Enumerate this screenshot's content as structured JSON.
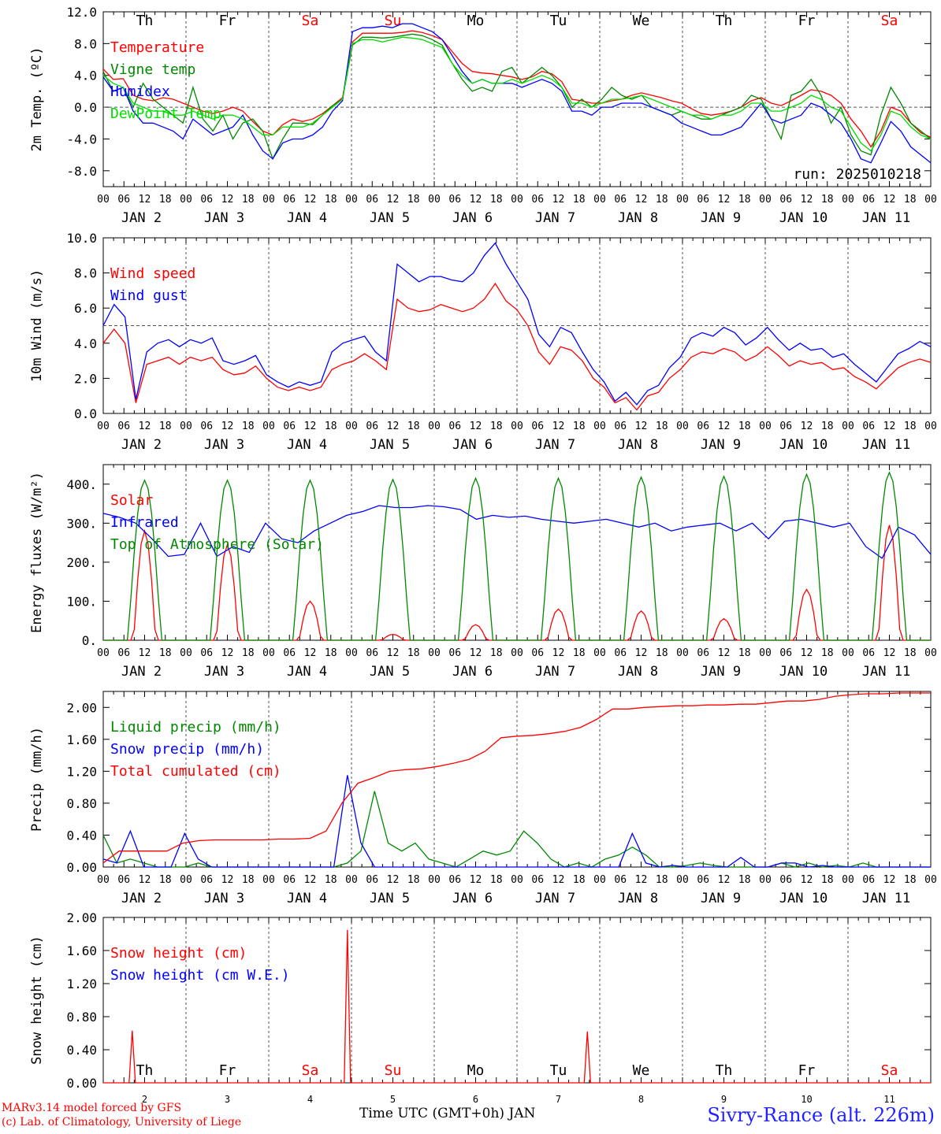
{
  "chart_data": [
    {
      "type": "line",
      "ylabel": "2m Temp. (ºC)",
      "ylim": [
        -10,
        12
      ],
      "yticks": [
        "12.0",
        "8.0",
        "4.0",
        "0.0",
        "-4.0",
        "-8.0"
      ],
      "annotation": "run: 2025010218",
      "reference_line": 0,
      "series": [
        {
          "name": "Temperature",
          "color": "#ff0000",
          "values": [
            4.8,
            3.5,
            3.6,
            1.5,
            1.0,
            0.8,
            1.2,
            1.0,
            0.5,
            0.0,
            -0.5,
            -0.8,
            -0.5,
            0.0,
            -0.5,
            -1.8,
            -3.0,
            -3.5,
            -2.2,
            -1.5,
            -1.8,
            -1.5,
            -0.8,
            0.2,
            1.2,
            8.2,
            9.3,
            9.3,
            9.3,
            9.3,
            9.4,
            9.6,
            9.4,
            9.0,
            8.5,
            7.0,
            5.5,
            4.5,
            4.3,
            4.2,
            4.0,
            3.8,
            3.5,
            3.8,
            4.5,
            4.2,
            3.2,
            1.0,
            0.8,
            0.5,
            0.5,
            0.8,
            1.0,
            1.5,
            1.8,
            1.5,
            1.2,
            0.8,
            0.5,
            -0.2,
            -0.8,
            -1.0,
            -0.8,
            -0.5,
            0.0,
            0.8,
            1.2,
            0.5,
            0.2,
            0.8,
            1.5,
            2.2,
            2.0,
            1.5,
            0.5,
            -1.5,
            -3.0,
            -5.0,
            -3.0,
            0.0,
            -0.5,
            -2.0,
            -3.2,
            -3.8
          ]
        },
        {
          "name": "Vigne temp",
          "color": "#008800",
          "values": [
            4.5,
            2.0,
            2.5,
            0.0,
            3.0,
            1.0,
            0.0,
            -1.0,
            -2.0,
            2.5,
            -1.5,
            -3.0,
            -1.0,
            -4.0,
            -2.0,
            -1.5,
            -3.0,
            -6.5,
            -4.0,
            -2.0,
            -2.0,
            -2.2,
            -1.0,
            0.2,
            1.0,
            7.8,
            8.8,
            8.8,
            8.7,
            8.8,
            9.0,
            9.2,
            9.0,
            8.5,
            7.8,
            5.5,
            3.5,
            2.0,
            2.5,
            2.0,
            4.5,
            5.0,
            3.0,
            4.0,
            5.0,
            4.0,
            2.5,
            0.0,
            1.0,
            0.0,
            1.0,
            2.5,
            1.5,
            1.0,
            1.5,
            0.0,
            -0.5,
            -1.0,
            -0.5,
            -1.0,
            -1.5,
            -1.5,
            -1.0,
            -0.5,
            0.0,
            1.5,
            1.0,
            -1.5,
            -4.0,
            1.5,
            2.0,
            3.5,
            1.5,
            -2.0,
            0.0,
            -3.5,
            -5.5,
            -6.0,
            -1.0,
            2.5,
            0.5,
            -2.0,
            -3.0,
            -4.0
          ]
        },
        {
          "name": "Humidex",
          "color": "#0000ff",
          "values": [
            3.8,
            2.0,
            2.5,
            -0.5,
            -2.0,
            -2.0,
            -2.5,
            -3.0,
            -4.0,
            -1.5,
            -2.5,
            -3.5,
            -3.0,
            -2.5,
            -1.0,
            -3.5,
            -5.5,
            -6.5,
            -4.5,
            -4.0,
            -4.0,
            -3.5,
            -2.5,
            -0.5,
            0.8,
            9.5,
            10.0,
            10.0,
            10.2,
            10.0,
            10.5,
            10.5,
            10.0,
            9.5,
            8.5,
            6.5,
            4.5,
            3.0,
            3.5,
            3.0,
            3.0,
            3.0,
            2.5,
            3.0,
            3.5,
            3.0,
            2.0,
            -0.5,
            -0.5,
            -1.0,
            0.0,
            0.0,
            0.5,
            0.5,
            0.5,
            0.0,
            -0.5,
            -1.0,
            -2.0,
            -2.5,
            -3.0,
            -3.5,
            -3.5,
            -3.0,
            -2.5,
            -1.0,
            0.5,
            -1.5,
            -2.0,
            -1.5,
            -1.0,
            0.5,
            0.0,
            -1.0,
            -2.0,
            -4.0,
            -6.5,
            -7.0,
            -4.5,
            -1.8,
            -3.0,
            -5.0,
            -6.0,
            -7.0
          ]
        },
        {
          "name": "DewPoint Temp",
          "color": "#00dd00",
          "values": [
            4.0,
            3.0,
            2.5,
            0.5,
            0.0,
            -0.5,
            -0.5,
            -1.0,
            -1.0,
            -0.5,
            -1.0,
            -1.5,
            -1.0,
            -1.0,
            -1.5,
            -2.5,
            -3.5,
            -3.5,
            -2.5,
            -2.5,
            -2.5,
            -2.0,
            -1.0,
            0.0,
            1.0,
            8.0,
            8.5,
            8.5,
            8.2,
            8.5,
            8.8,
            8.7,
            8.5,
            8.0,
            7.5,
            5.5,
            4.0,
            3.0,
            3.5,
            3.0,
            3.0,
            3.5,
            3.0,
            3.5,
            4.0,
            3.5,
            2.5,
            0.5,
            0.5,
            0.0,
            0.5,
            1.0,
            1.0,
            1.2,
            1.5,
            1.0,
            0.5,
            0.0,
            -0.5,
            -1.0,
            -1.0,
            -1.5,
            -1.0,
            -1.0,
            -0.5,
            0.5,
            0.5,
            -0.5,
            -0.5,
            0.0,
            0.5,
            1.5,
            1.0,
            0.0,
            -0.5,
            -2.5,
            -4.5,
            -5.5,
            -3.5,
            -0.5,
            -1.0,
            -2.5,
            -3.5,
            -4.0
          ]
        }
      ]
    },
    {
      "type": "line",
      "ylabel": "10m Wind (m/s)",
      "ylim": [
        0,
        10
      ],
      "yticks": [
        "10.0",
        "8.0",
        "6.0",
        "4.0",
        "2.0",
        "0.0"
      ],
      "reference_line": 5,
      "series": [
        {
          "name": "Wind speed",
          "color": "#ff0000",
          "values": [
            4.0,
            4.8,
            4.0,
            0.6,
            2.8,
            3.0,
            3.2,
            2.8,
            3.2,
            3.0,
            3.2,
            2.5,
            2.2,
            2.3,
            2.7,
            2.0,
            1.5,
            1.3,
            1.5,
            1.3,
            1.5,
            2.5,
            2.8,
            3.0,
            3.4,
            3.0,
            2.5,
            6.5,
            6.0,
            5.8,
            5.9,
            6.2,
            6.0,
            5.8,
            6.0,
            6.5,
            7.4,
            6.4,
            5.9,
            5.0,
            3.5,
            2.8,
            3.8,
            3.6,
            3.0,
            2.0,
            1.5,
            0.6,
            0.9,
            0.2,
            1.0,
            1.2,
            2.0,
            2.5,
            3.2,
            3.5,
            3.4,
            3.7,
            3.5,
            3.0,
            3.3,
            3.8,
            3.3,
            2.7,
            3.0,
            2.8,
            2.9,
            2.5,
            2.6,
            2.1,
            1.8,
            1.4,
            2.0,
            2.6,
            2.9,
            3.1,
            2.9
          ]
        },
        {
          "name": "Wind gust",
          "color": "#0000ff",
          "values": [
            5.0,
            6.2,
            5.5,
            0.8,
            3.5,
            4.0,
            4.2,
            3.8,
            4.2,
            4.0,
            4.3,
            3.0,
            2.8,
            3.0,
            3.3,
            2.2,
            1.8,
            1.5,
            1.8,
            1.6,
            1.8,
            3.5,
            4.0,
            4.2,
            4.4,
            3.5,
            3.0,
            8.5,
            8.0,
            7.5,
            7.8,
            7.8,
            7.6,
            7.5,
            8.0,
            9.0,
            9.7,
            8.5,
            7.5,
            6.5,
            4.5,
            3.8,
            4.9,
            4.6,
            3.5,
            2.5,
            1.8,
            0.7,
            1.2,
            0.5,
            1.3,
            1.6,
            2.6,
            3.2,
            4.3,
            4.6,
            4.4,
            4.9,
            4.6,
            3.9,
            4.3,
            4.9,
            4.2,
            3.6,
            4.0,
            3.6,
            3.7,
            3.2,
            3.4,
            2.8,
            2.3,
            1.8,
            2.6,
            3.4,
            3.7,
            4.1,
            3.8
          ]
        }
      ]
    },
    {
      "type": "line",
      "ylabel": "Energy fluxes (W/m²)",
      "ylim": [
        0,
        450
      ],
      "yticks": [
        "400.",
        "300.",
        "200.",
        "100.",
        "0."
      ],
      "series": [
        {
          "name": "Solar",
          "color": "#ff0000",
          "peaks": [
            280,
            245,
            100,
            15,
            40,
            80,
            75,
            55,
            130,
            295
          ]
        },
        {
          "name": "Infrared",
          "color": "#0000ff",
          "values": [
            325,
            315,
            300,
            260,
            215,
            220,
            300,
            215,
            240,
            225,
            300,
            260,
            250,
            280,
            300,
            320,
            330,
            345,
            340,
            340,
            345,
            342,
            335,
            310,
            320,
            315,
            318,
            310,
            305,
            300,
            305,
            310,
            300,
            290,
            300,
            280,
            290,
            295,
            300,
            280,
            300,
            260,
            305,
            310,
            300,
            290,
            300,
            240,
            210,
            290,
            270,
            220
          ]
        },
        {
          "name": "Top of Atmosphere (Solar)",
          "color": "#008800",
          "peaks": [
            410,
            410,
            410,
            412,
            415,
            415,
            418,
            420,
            425,
            430
          ]
        }
      ]
    },
    {
      "type": "line",
      "ylabel": "Precip (mm/h)",
      "ylim": [
        0,
        2.2
      ],
      "yticks": [
        "2.00",
        "1.60",
        "1.20",
        "0.80",
        "0.40",
        "0.00"
      ],
      "series": [
        {
          "name": "Liquid precip (mm/h)",
          "color": "#008800",
          "values": [
            0.4,
            0.05,
            0.1,
            0.05,
            0.0,
            0.0,
            0.0,
            0.05,
            0.0,
            0.0,
            0.0,
            0.0,
            0.0,
            0.0,
            0.0,
            0.0,
            0.0,
            0.0,
            0.05,
            0.2,
            0.95,
            0.3,
            0.2,
            0.3,
            0.1,
            0.05,
            0.0,
            0.1,
            0.2,
            0.15,
            0.2,
            0.45,
            0.3,
            0.1,
            0.0,
            0.05,
            0.0,
            0.1,
            0.15,
            0.25,
            0.15,
            0.0,
            0.0,
            0.02,
            0.05,
            0.02,
            0.0,
            0.0,
            0.0,
            0.0,
            0.05,
            0.0,
            0.05,
            0.0,
            0.02,
            0.0,
            0.05,
            0.0,
            0.0,
            0.0,
            0.0,
            0.0
          ]
        },
        {
          "name": "Snow precip (mm/h)",
          "color": "#0000ff",
          "values": [
            0.1,
            0.05,
            0.45,
            0.0,
            0.0,
            0.0,
            0.42,
            0.1,
            0.0,
            0.0,
            0.0,
            0.0,
            0.0,
            0.0,
            0.0,
            0.0,
            0.0,
            0.0,
            1.15,
            0.3,
            0.0,
            0.0,
            0.0,
            0.0,
            0.0,
            0.0,
            0.0,
            0.0,
            0.0,
            0.0,
            0.0,
            0.0,
            0.0,
            0.0,
            0.0,
            0.0,
            0.0,
            0.0,
            0.0,
            0.42,
            0.05,
            0.0,
            0.02,
            0.0,
            0.0,
            0.0,
            0.0,
            0.12,
            0.0,
            0.0,
            0.05,
            0.05,
            0.0,
            0.02,
            0.0,
            0.0,
            0.0,
            0.0,
            0.0,
            0.0,
            0.0,
            0.0
          ]
        },
        {
          "name": "Total cumulated (cm)",
          "color": "#ff0000",
          "values": [
            0.05,
            0.2,
            0.2,
            0.2,
            0.2,
            0.3,
            0.33,
            0.34,
            0.34,
            0.34,
            0.34,
            0.35,
            0.35,
            0.36,
            0.45,
            0.8,
            1.05,
            1.12,
            1.2,
            1.22,
            1.23,
            1.26,
            1.3,
            1.35,
            1.45,
            1.62,
            1.64,
            1.65,
            1.67,
            1.7,
            1.75,
            1.85,
            1.98,
            1.98,
            2.0,
            2.01,
            2.02,
            2.02,
            2.03,
            2.03,
            2.04,
            2.04,
            2.06,
            2.08,
            2.08,
            2.1,
            2.14,
            2.16,
            2.17,
            2.17,
            2.18,
            2.18,
            2.18
          ]
        }
      ]
    },
    {
      "type": "line",
      "ylabel": "Snow height (cm)",
      "ylim": [
        0,
        2
      ],
      "yticks": [
        "2.00",
        "1.60",
        "1.20",
        "0.80",
        "0.40",
        "0.00"
      ],
      "xlabel": "Time UTC (GMT+0h) JAN",
      "xticks": [
        "2",
        "3",
        "4",
        "5",
        "6",
        "7",
        "8",
        "9",
        "10",
        "11"
      ],
      "series": [
        {
          "name": "Snow height (cm)",
          "color": "#ff0000",
          "spikes": [
            {
              "day": 0.35,
              "value": 0.63
            },
            {
              "day": 2.95,
              "value": 1.85
            },
            {
              "day": 5.85,
              "value": 0.62
            }
          ]
        },
        {
          "name": "Snow height (cm W.E.)",
          "color": "#0000ff",
          "spikes": []
        }
      ]
    }
  ],
  "weekdays": [
    "Th",
    "Fr",
    "Sa",
    "Su",
    "Mo",
    "Tu",
    "We",
    "Th",
    "Fr",
    "Sa"
  ],
  "weekday_colors": [
    "#000000",
    "#000000",
    "#ff0000",
    "#ff0000",
    "#000000",
    "#000000",
    "#000000",
    "#000000",
    "#000000",
    "#ff0000"
  ],
  "hour_ticks": [
    "00",
    "06",
    "12",
    "18"
  ],
  "date_labels": [
    "JAN  2",
    "JAN  3",
    "JAN  4",
    "JAN  5",
    "JAN  6",
    "JAN  7",
    "JAN  8",
    "JAN  9",
    "JAN 10",
    "JAN 11"
  ],
  "footer": {
    "model": "MARv3.14 model forced by GFS",
    "credit": "(c) Lab. of Climatology, University of Liege",
    "station": "Sivry-Rance (alt. 226m)"
  }
}
